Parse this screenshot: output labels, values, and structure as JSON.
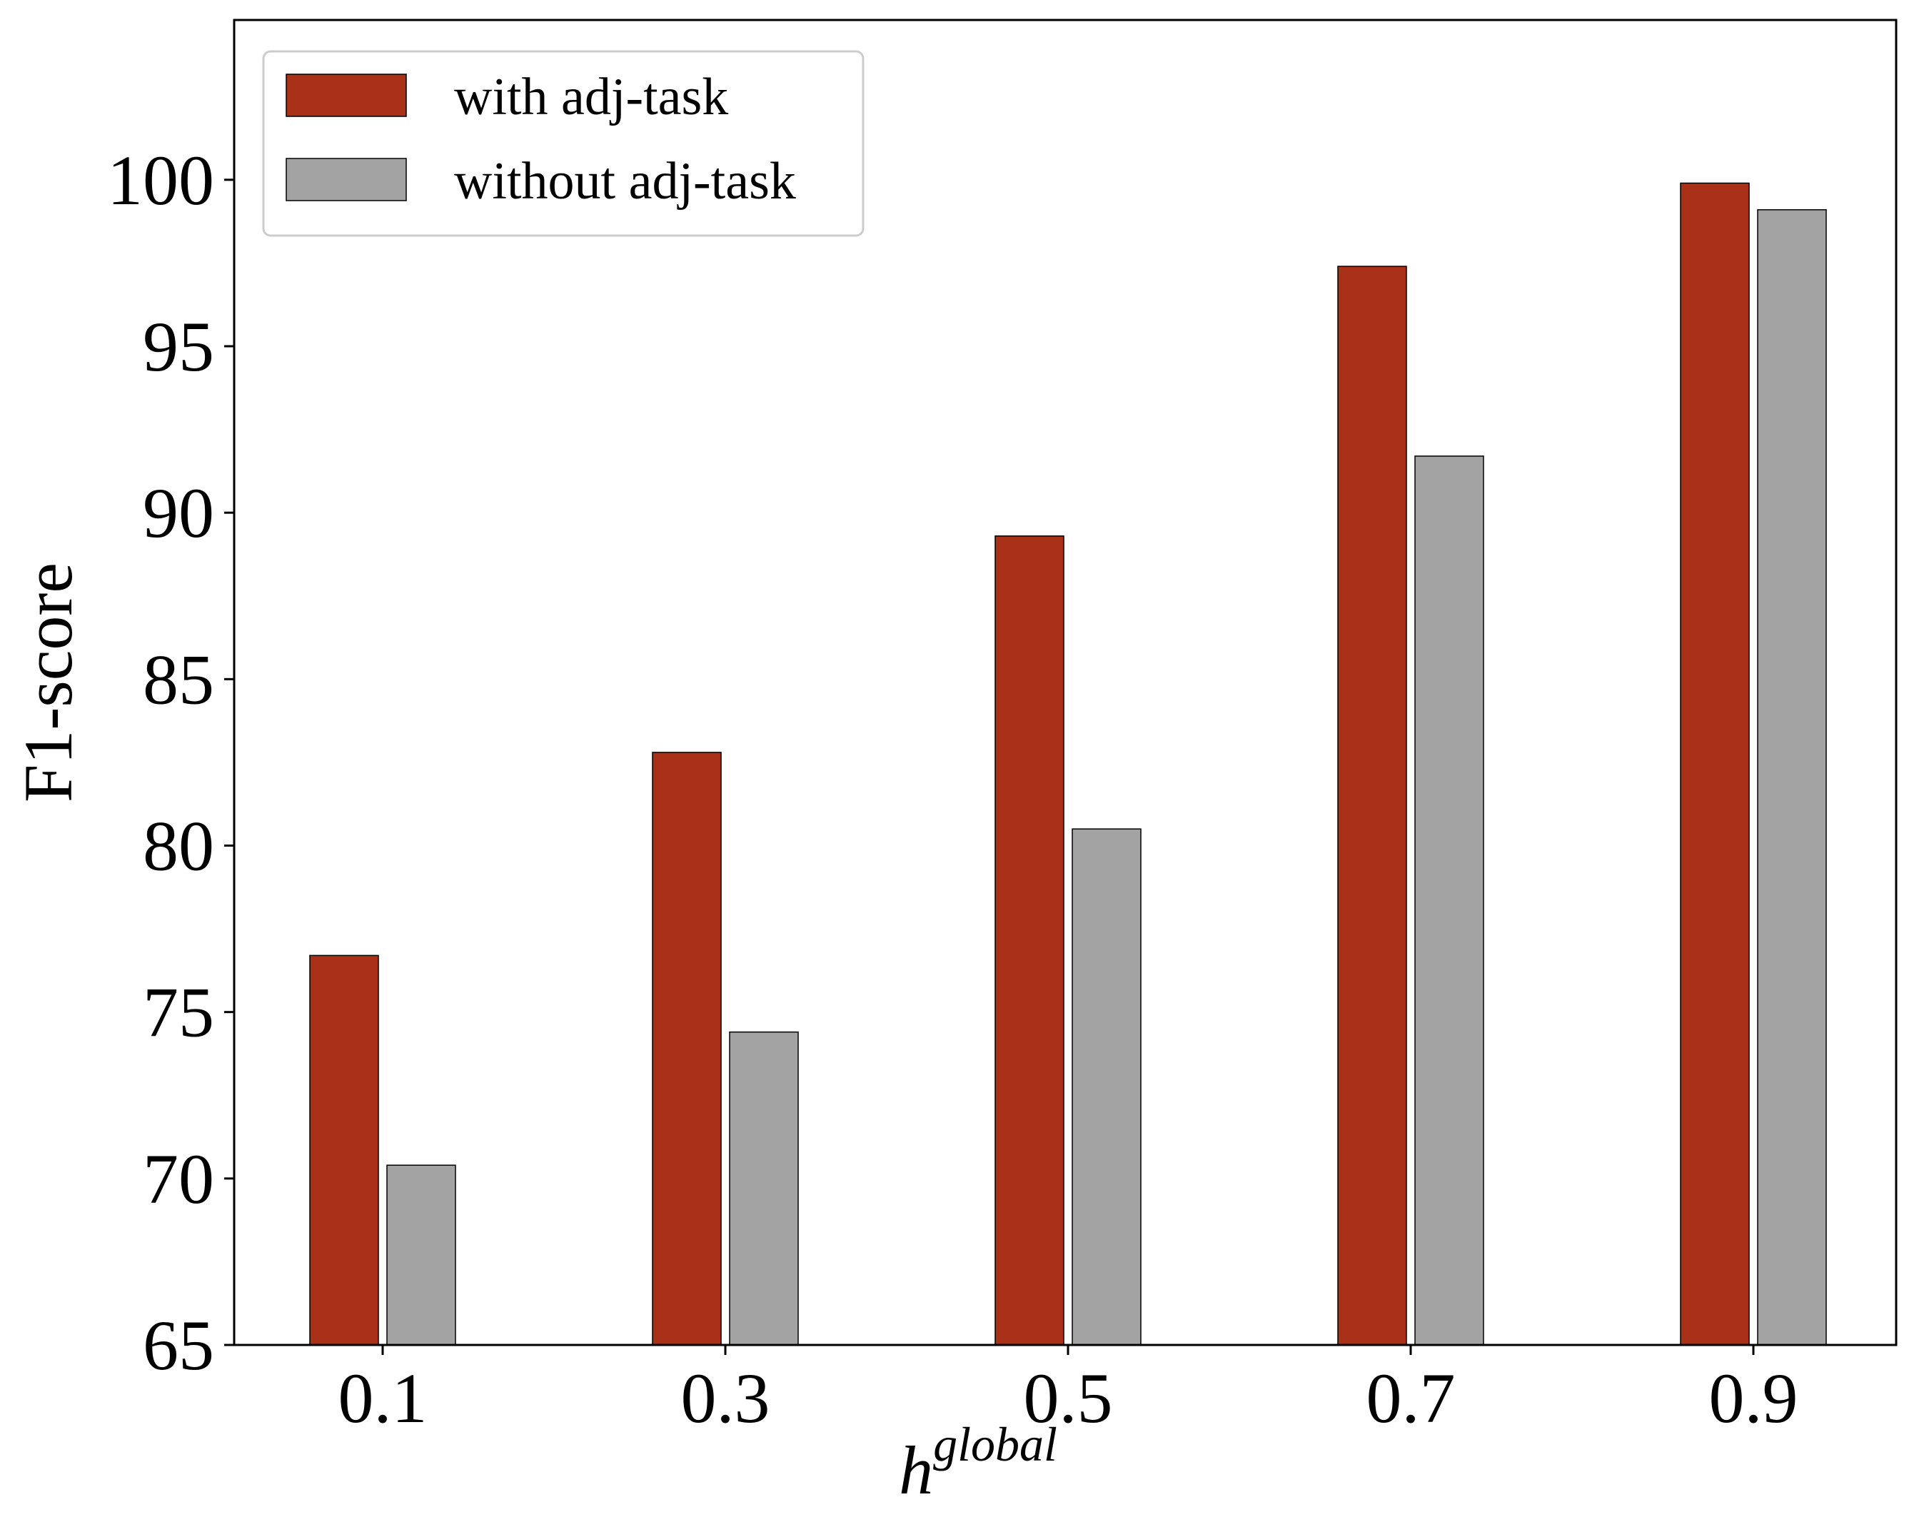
{
  "chart_data": {
    "type": "bar",
    "categories": [
      "0.1",
      "0.3",
      "0.5",
      "0.7",
      "0.9"
    ],
    "series": [
      {
        "name": "with adj-task",
        "values": [
          76.7,
          82.8,
          89.3,
          97.4,
          99.9
        ],
        "color": "#a93118"
      },
      {
        "name": "without adj-task",
        "values": [
          70.4,
          74.4,
          80.5,
          91.7,
          99.1
        ],
        "color": "#a3a3a3"
      }
    ],
    "xlabel_base": "h",
    "xlabel_sup": "global",
    "ylabel": "F1-score",
    "ylim": [
      65,
      104.8
    ],
    "yticks": [
      "65",
      "70",
      "75",
      "80",
      "85",
      "90",
      "95",
      "100"
    ],
    "legend_position": "upper-left",
    "grid": false
  }
}
